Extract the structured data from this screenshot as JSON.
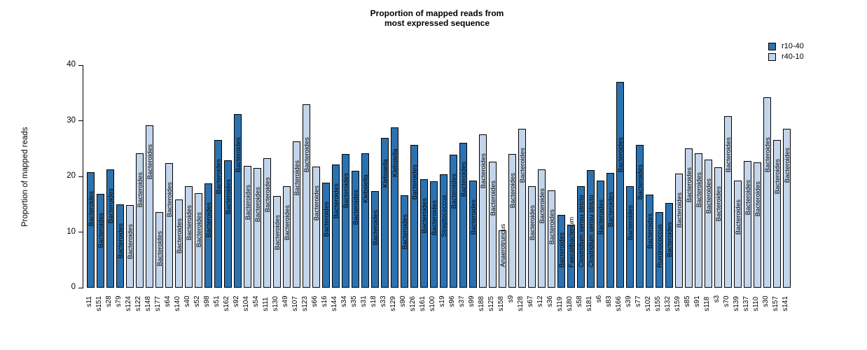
{
  "title": {
    "line1": "Proportion of mapped reads from",
    "line2": "most expressed sequence"
  },
  "y_axis": {
    "label": "Proportion of mapped reads",
    "ticks": [
      0,
      10,
      20,
      30,
      40
    ]
  },
  "legend": [
    {
      "label": "r10-40",
      "color": "#2c72b0"
    },
    {
      "label": "r40-10",
      "color": "#c3d5eb"
    }
  ],
  "colors": {
    "r10-40": "#2c72b0",
    "r40-10": "#c3d5eb"
  },
  "chart_data": {
    "type": "bar",
    "title": "Proportion of mapped reads from most expressed sequence",
    "xlabel": "",
    "ylabel": "Proportion of mapped reads",
    "ylim": [
      0,
      40
    ],
    "grid": false,
    "legend_position": "top-right",
    "groups": [
      "r10-40",
      "r40-10"
    ],
    "bars": [
      {
        "sample": "s11",
        "value": 20.7,
        "group": "r10-40",
        "taxon": "Bacteroides"
      },
      {
        "sample": "s151",
        "value": 16.8,
        "group": "r10-40",
        "taxon": "Bacteroides"
      },
      {
        "sample": "s28",
        "value": 21.2,
        "group": "r10-40",
        "taxon": "Bacteroides"
      },
      {
        "sample": "s79",
        "value": 15.0,
        "group": "r10-40",
        "taxon": "Bacteroides"
      },
      {
        "sample": "s124",
        "value": 14.8,
        "group": "r40-10",
        "taxon": "Bacteroides"
      },
      {
        "sample": "s122",
        "value": 24.2,
        "group": "r40-10",
        "taxon": "Bacteroides"
      },
      {
        "sample": "s148",
        "value": 29.2,
        "group": "r40-10",
        "taxon": "Bacteroides"
      },
      {
        "sample": "s177",
        "value": 13.6,
        "group": "r40-10",
        "taxon": "Bacteroides"
      },
      {
        "sample": "s64",
        "value": 22.4,
        "group": "r40-10",
        "taxon": "Bacteroides"
      },
      {
        "sample": "s140",
        "value": 15.9,
        "group": "r40-10",
        "taxon": "Bacteroides"
      },
      {
        "sample": "s40",
        "value": 18.3,
        "group": "r40-10",
        "taxon": "Bacteroides"
      },
      {
        "sample": "s52",
        "value": 17.0,
        "group": "r40-10",
        "taxon": "Bacteroides"
      },
      {
        "sample": "s98",
        "value": 18.7,
        "group": "r10-40",
        "taxon": "Bacteroides"
      },
      {
        "sample": "s51",
        "value": 26.5,
        "group": "r10-40",
        "taxon": "Bacteroides"
      },
      {
        "sample": "s162",
        "value": 22.9,
        "group": "r10-40",
        "taxon": "Bacteroides"
      },
      {
        "sample": "s92",
        "value": 31.2,
        "group": "r10-40",
        "taxon": "Bacteroides"
      },
      {
        "sample": "s104",
        "value": 21.9,
        "group": "r40-10",
        "taxon": "Bacteroides"
      },
      {
        "sample": "s54",
        "value": 21.5,
        "group": "r40-10",
        "taxon": "Bacteroides"
      },
      {
        "sample": "s111",
        "value": 23.3,
        "group": "r40-10",
        "taxon": "Bacteroides"
      },
      {
        "sample": "s130",
        "value": 16.5,
        "group": "r40-10",
        "taxon": "Bacteroides"
      },
      {
        "sample": "s49",
        "value": 18.3,
        "group": "r40-10",
        "taxon": "Bacteroides"
      },
      {
        "sample": "s107",
        "value": 26.3,
        "group": "r40-10",
        "taxon": "Bacteroides"
      },
      {
        "sample": "s123",
        "value": 33.0,
        "group": "r40-10",
        "taxon": "Bacteroides"
      },
      {
        "sample": "s66",
        "value": 21.8,
        "group": "r40-10",
        "taxon": "Bacteroides"
      },
      {
        "sample": "s16",
        "value": 18.9,
        "group": "r10-40",
        "taxon": "Bacteroides"
      },
      {
        "sample": "s144",
        "value": 22.2,
        "group": "r10-40",
        "taxon": "Bacteroides"
      },
      {
        "sample": "s34",
        "value": 24.0,
        "group": "r10-40",
        "taxon": "Bacteroides"
      },
      {
        "sample": "s35",
        "value": 21.0,
        "group": "r10-40",
        "taxon": "Bacteroides"
      },
      {
        "sample": "s31",
        "value": 24.1,
        "group": "r10-40",
        "taxon": "Klebsiella"
      },
      {
        "sample": "s18",
        "value": 17.4,
        "group": "r10-40",
        "taxon": "Bacteroides"
      },
      {
        "sample": "s33",
        "value": 26.9,
        "group": "r10-40",
        "taxon": "Klebsiella"
      },
      {
        "sample": "s129",
        "value": 28.8,
        "group": "r10-40",
        "taxon": "Klebsiella"
      },
      {
        "sample": "s90",
        "value": 16.6,
        "group": "r10-40",
        "taxon": "Bacteroides"
      },
      {
        "sample": "s126",
        "value": 25.6,
        "group": "r10-40",
        "taxon": "Bacteroides"
      },
      {
        "sample": "s161",
        "value": 19.5,
        "group": "r10-40",
        "taxon": "Bacteroides"
      },
      {
        "sample": "s100",
        "value": 19.1,
        "group": "r10-40",
        "taxon": "Bacteroides"
      },
      {
        "sample": "s19",
        "value": 20.4,
        "group": "r10-40",
        "taxon": "Streptococcus"
      },
      {
        "sample": "s96",
        "value": 23.9,
        "group": "r10-40",
        "taxon": "Bacteroides"
      },
      {
        "sample": "s37",
        "value": 26.0,
        "group": "r10-40",
        "taxon": "Bacteroides"
      },
      {
        "sample": "s99",
        "value": 19.3,
        "group": "r10-40",
        "taxon": "Bacteroides"
      },
      {
        "sample": "s188",
        "value": 27.5,
        "group": "r40-10",
        "taxon": "Bacteroides"
      },
      {
        "sample": "s125",
        "value": 22.6,
        "group": "r40-10",
        "taxon": "Bacteroides"
      },
      {
        "sample": "s158",
        "value": 10.3,
        "group": "r40-10",
        "taxon": "Anaerotruncus"
      },
      {
        "sample": "s9",
        "value": 24.0,
        "group": "r40-10",
        "taxon": "Bacteroides"
      },
      {
        "sample": "s128",
        "value": 28.5,
        "group": "r40-10",
        "taxon": "Bacteroides"
      },
      {
        "sample": "s67",
        "value": 18.2,
        "group": "r40-10",
        "taxon": "Bacteroides"
      },
      {
        "sample": "s12",
        "value": 21.3,
        "group": "r40-10",
        "taxon": "Bacteroides"
      },
      {
        "sample": "s36",
        "value": 17.5,
        "group": "r40-10",
        "taxon": "Bacteroides"
      },
      {
        "sample": "s119",
        "value": 13.1,
        "group": "r10-40",
        "taxon": "Bacteroides"
      },
      {
        "sample": "s180",
        "value": 11.3,
        "group": "r10-40",
        "taxon": "Faecalibacterium"
      },
      {
        "sample": "s58",
        "value": 18.2,
        "group": "r10-40",
        "taxon": "Clostridium sensu stricto"
      },
      {
        "sample": "s181",
        "value": 21.1,
        "group": "r10-40",
        "taxon": "Clostridium sensu stricto"
      },
      {
        "sample": "s6",
        "value": 19.3,
        "group": "r10-40",
        "taxon": "Bacteroides"
      },
      {
        "sample": "s83",
        "value": 20.6,
        "group": "r10-40",
        "taxon": "Bacteroides"
      },
      {
        "sample": "s166",
        "value": 37.0,
        "group": "r10-40",
        "taxon": "Bacteroides"
      },
      {
        "sample": "s39",
        "value": 18.3,
        "group": "r10-40",
        "taxon": "Bacteroides"
      },
      {
        "sample": "s77",
        "value": 25.6,
        "group": "r10-40",
        "taxon": "Bacteroides"
      },
      {
        "sample": "s102",
        "value": 16.7,
        "group": "r10-40",
        "taxon": "Bacteroides"
      },
      {
        "sample": "s155",
        "value": 13.6,
        "group": "r10-40",
        "taxon": "Ruminococcus"
      },
      {
        "sample": "s132",
        "value": 15.2,
        "group": "r10-40",
        "taxon": "Bacteroides"
      },
      {
        "sample": "s159",
        "value": 20.5,
        "group": "r40-10",
        "taxon": "Bacteroides"
      },
      {
        "sample": "s85",
        "value": 25.0,
        "group": "r40-10",
        "taxon": "Bacteroides"
      },
      {
        "sample": "s91",
        "value": 24.1,
        "group": "r40-10",
        "taxon": "Bacteroides"
      },
      {
        "sample": "s118",
        "value": 23.0,
        "group": "r40-10",
        "taxon": "Bacteroides"
      },
      {
        "sample": "s3",
        "value": 21.7,
        "group": "r40-10",
        "taxon": "Bacteroides"
      },
      {
        "sample": "s70",
        "value": 30.8,
        "group": "r40-10",
        "taxon": "Bacteroides"
      },
      {
        "sample": "s139",
        "value": 19.3,
        "group": "r40-10",
        "taxon": "Bacteroides"
      },
      {
        "sample": "s137",
        "value": 22.8,
        "group": "r40-10",
        "taxon": "Bacteroides"
      },
      {
        "sample": "s110",
        "value": 22.5,
        "group": "r40-10",
        "taxon": "Bacteroides"
      },
      {
        "sample": "s30",
        "value": 34.2,
        "group": "r40-10",
        "taxon": "Bacteroides"
      },
      {
        "sample": "s157",
        "value": 26.5,
        "group": "r40-10",
        "taxon": "Bacteroides"
      },
      {
        "sample": "s141",
        "value": 28.6,
        "group": "r40-10",
        "taxon": "Bacteroides"
      }
    ]
  }
}
